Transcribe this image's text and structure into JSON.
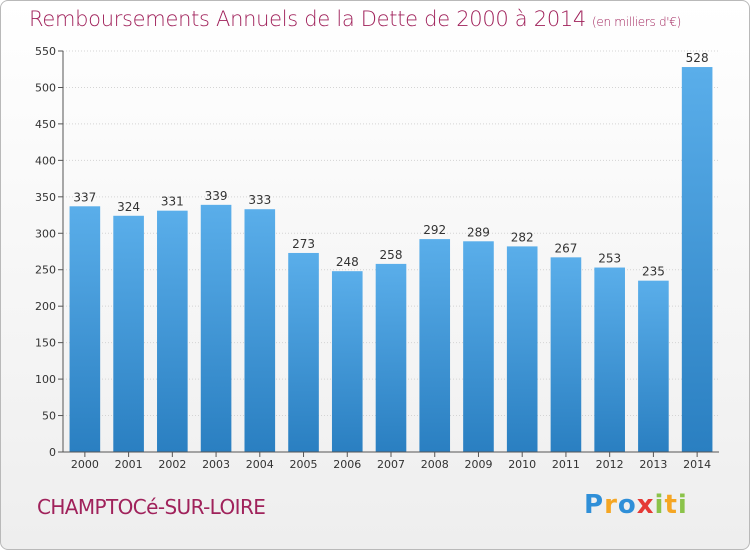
{
  "chart_data": {
    "type": "bar",
    "title": "Remboursements Annuels de la Dette de 2000 à 2014",
    "unit_note": "(en milliers d'€)",
    "categories": [
      "2000",
      "2001",
      "2002",
      "2003",
      "2004",
      "2005",
      "2006",
      "2007",
      "2008",
      "2009",
      "2010",
      "2011",
      "2012",
      "2013",
      "2014"
    ],
    "values": [
      337,
      324,
      331,
      339,
      333,
      273,
      248,
      258,
      292,
      289,
      282,
      267,
      253,
      235,
      528
    ],
    "ylim": [
      0,
      550
    ],
    "yticks": [
      0,
      50,
      100,
      150,
      200,
      250,
      300,
      350,
      400,
      450,
      500,
      550
    ],
    "grid": true,
    "legend": "none",
    "bar_color_top": "#5aaeea",
    "bar_color_bottom": "#2a7fc1"
  },
  "footer": {
    "commune": "CHAMPTOCé-SUR-LOIRE"
  },
  "logo": {
    "letters": [
      "P",
      "r",
      "o",
      "x",
      "i",
      "t",
      "i"
    ],
    "colors": [
      "#2f8fd8",
      "#f5a623",
      "#2f8fd8",
      "#e53935",
      "#8bc34a",
      "#f5a623",
      "#8bc34a"
    ]
  },
  "colors": {
    "accent": "#a0225b"
  }
}
